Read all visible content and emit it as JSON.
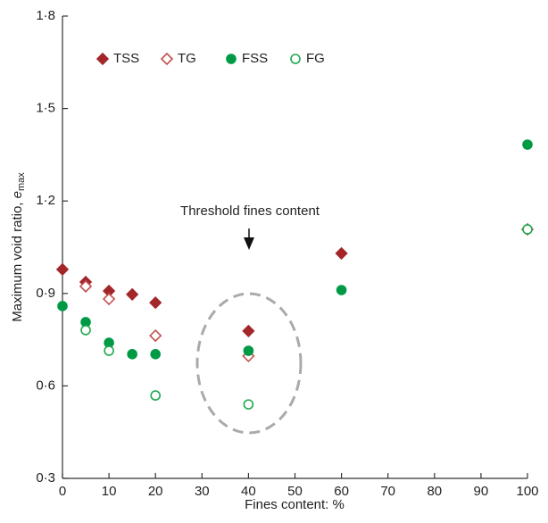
{
  "chart_data": {
    "type": "scatter",
    "xlabel": "Fines content: %",
    "ylabel": {
      "text": "Maximum void ratio, ",
      "symbol": "e",
      "subscript": "max"
    },
    "annotation": "Threshold fines content",
    "xlim": [
      0,
      100
    ],
    "ylim": [
      0.3,
      1.8
    ],
    "xticks": [
      0,
      10,
      20,
      30,
      40,
      50,
      60,
      70,
      80,
      90,
      100
    ],
    "yticks": [
      {
        "value": 0.3,
        "label": "0·3"
      },
      {
        "value": 0.6,
        "label": "0·6"
      },
      {
        "value": 0.9,
        "label": "0·9"
      },
      {
        "value": 1.2,
        "label": "1·2"
      },
      {
        "value": 1.5,
        "label": "1·5"
      },
      {
        "value": 1.8,
        "label": "1·8"
      }
    ],
    "series": [
      {
        "name": "TSS",
        "color": "#a3262a",
        "marker": "diamond",
        "filled": true,
        "x": [
          0,
          5,
          10,
          15,
          20,
          40,
          60
        ],
        "values": [
          0.978,
          0.937,
          0.908,
          0.897,
          0.87,
          0.778,
          1.03
        ]
      },
      {
        "name": "TG",
        "color": "#c0504d",
        "marker": "diamond",
        "filled": false,
        "x": [
          5,
          10,
          20,
          40,
          100
        ],
        "values": [
          0.923,
          0.882,
          0.763,
          0.697,
          1.108
        ]
      },
      {
        "name": "FSS",
        "color": "#009a44",
        "marker": "circle",
        "filled": true,
        "x": [
          0,
          5,
          10,
          15,
          20,
          40,
          60,
          100
        ],
        "values": [
          0.859,
          0.807,
          0.74,
          0.703,
          0.703,
          0.714,
          0.911,
          1.383
        ]
      },
      {
        "name": "FG",
        "color": "#1fa84f",
        "marker": "circle",
        "filled": false,
        "x": [
          5,
          10,
          20,
          40,
          100
        ],
        "values": [
          0.781,
          0.714,
          0.569,
          0.54,
          1.108
        ]
      }
    ]
  }
}
